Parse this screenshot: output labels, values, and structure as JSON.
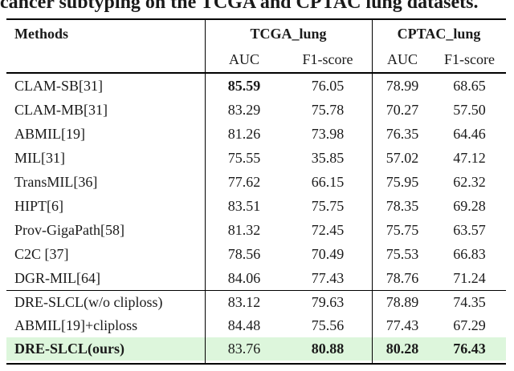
{
  "caption": "cancer subtyping on the TCGA and CPTAC lung datasets.",
  "colors": {
    "highlight_green": "#ddf6dc",
    "rule_color": "#000000"
  },
  "table": {
    "header": {
      "methods_label": "Methods",
      "group1_label": "TCGA_lung",
      "group2_label": "CPTAC_lung",
      "sub_auc": "AUC",
      "sub_f1": "F1-score"
    },
    "rows_main": [
      {
        "method": "CLAM-SB[31]",
        "values": [
          "85.59",
          "76.05",
          "78.99",
          "68.65"
        ],
        "bold_values": [
          true,
          false,
          false,
          false
        ],
        "bold_method": false,
        "highlight": false
      },
      {
        "method": "CLAM-MB[31]",
        "values": [
          "83.29",
          "75.78",
          "70.27",
          "57.50"
        ],
        "bold_values": [
          false,
          false,
          false,
          false
        ],
        "bold_method": false,
        "highlight": false
      },
      {
        "method": "ABMIL[19]",
        "values": [
          "81.26",
          "73.98",
          "76.35",
          "64.46"
        ],
        "bold_values": [
          false,
          false,
          false,
          false
        ],
        "bold_method": false,
        "highlight": false
      },
      {
        "method": "MIL[31]",
        "values": [
          "75.55",
          "35.85",
          "57.02",
          "47.12"
        ],
        "bold_values": [
          false,
          false,
          false,
          false
        ],
        "bold_method": false,
        "highlight": false
      },
      {
        "method": "TransMIL[36]",
        "values": [
          "77.62",
          "66.15",
          "75.95",
          "62.32"
        ],
        "bold_values": [
          false,
          false,
          false,
          false
        ],
        "bold_method": false,
        "highlight": false
      },
      {
        "method": "HIPT[6]",
        "values": [
          "83.51",
          "75.75",
          "78.35",
          "69.28"
        ],
        "bold_values": [
          false,
          false,
          false,
          false
        ],
        "bold_method": false,
        "highlight": false
      },
      {
        "method": "Prov-GigaPath[58]",
        "values": [
          "81.32",
          "72.45",
          "75.75",
          "63.57"
        ],
        "bold_values": [
          false,
          false,
          false,
          false
        ],
        "bold_method": false,
        "highlight": false
      },
      {
        "method": "C2C [37]",
        "values": [
          "78.56",
          "70.49",
          "75.53",
          "66.83"
        ],
        "bold_values": [
          false,
          false,
          false,
          false
        ],
        "bold_method": false,
        "highlight": false
      },
      {
        "method": "DGR-MIL[64]",
        "values": [
          "84.06",
          "77.43",
          "78.76",
          "71.24"
        ],
        "bold_values": [
          false,
          false,
          false,
          false
        ],
        "bold_method": false,
        "highlight": false
      }
    ],
    "rows_bottom": [
      {
        "method": "DRE-SLCL(w/o cliploss)",
        "values": [
          "83.12",
          "79.63",
          "78.89",
          "74.35"
        ],
        "bold_values": [
          false,
          false,
          false,
          false
        ],
        "bold_method": false,
        "highlight": false
      },
      {
        "method": "ABMIL[19]+cliploss",
        "values": [
          "84.48",
          "75.56",
          "77.43",
          "67.29"
        ],
        "bold_values": [
          false,
          false,
          false,
          false
        ],
        "bold_method": false,
        "highlight": false
      },
      {
        "method": "DRE-SLCL(ours)",
        "values": [
          "83.76",
          "80.88",
          "80.28",
          "76.43"
        ],
        "bold_values": [
          false,
          true,
          true,
          true
        ],
        "bold_method": true,
        "highlight": true
      }
    ]
  }
}
